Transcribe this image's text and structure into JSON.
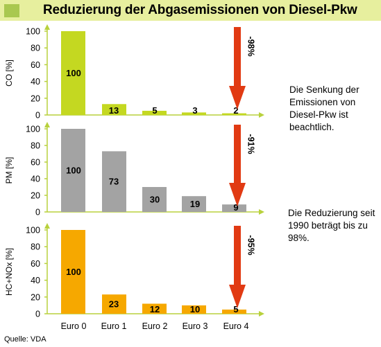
{
  "title": "Reduzierung der Abgasemissionen von Diesel-Pkw",
  "notes": [
    "Die Senkung der Emissionen von Diesel-Pkw ist beachtlich.",
    "Die Reduzierung seit 1990 beträgt bis zu 98%."
  ],
  "source": "Quelle: VDA",
  "colors": {
    "title_band": "#e7ef9e",
    "title_square": "#a9c84f",
    "axis": "#b8d13c",
    "arrow": "#e13a13"
  },
  "chart_data": [
    {
      "type": "bar",
      "ylabel": "CO [%]",
      "categories": [
        "Euro 0",
        "Euro 1",
        "Euro 2",
        "Euro 3",
        "Euro 4"
      ],
      "values": [
        100,
        13,
        5,
        3,
        2
      ],
      "ylim": [
        0,
        100
      ],
      "yticks": [
        0,
        20,
        40,
        60,
        80,
        100
      ],
      "bar_color": "#c4d821",
      "reduction_label": "-98%"
    },
    {
      "type": "bar",
      "ylabel": "PM [%]",
      "categories": [
        "Euro 0",
        "Euro 1",
        "Euro 2",
        "Euro 3",
        "Euro 4"
      ],
      "values": [
        100,
        73,
        30,
        19,
        9
      ],
      "ylim": [
        0,
        100
      ],
      "yticks": [
        0,
        20,
        40,
        60,
        80,
        100
      ],
      "bar_color": "#a3a3a3",
      "reduction_label": "-91%"
    },
    {
      "type": "bar",
      "ylabel": "HC+NOx [%]",
      "categories": [
        "Euro 0",
        "Euro 1",
        "Euro 2",
        "Euro 3",
        "Euro 4"
      ],
      "values": [
        100,
        23,
        12,
        10,
        5
      ],
      "ylim": [
        0,
        100
      ],
      "yticks": [
        0,
        20,
        40,
        60,
        80,
        100
      ],
      "bar_color": "#f6a800",
      "reduction_label": "-95%"
    }
  ]
}
